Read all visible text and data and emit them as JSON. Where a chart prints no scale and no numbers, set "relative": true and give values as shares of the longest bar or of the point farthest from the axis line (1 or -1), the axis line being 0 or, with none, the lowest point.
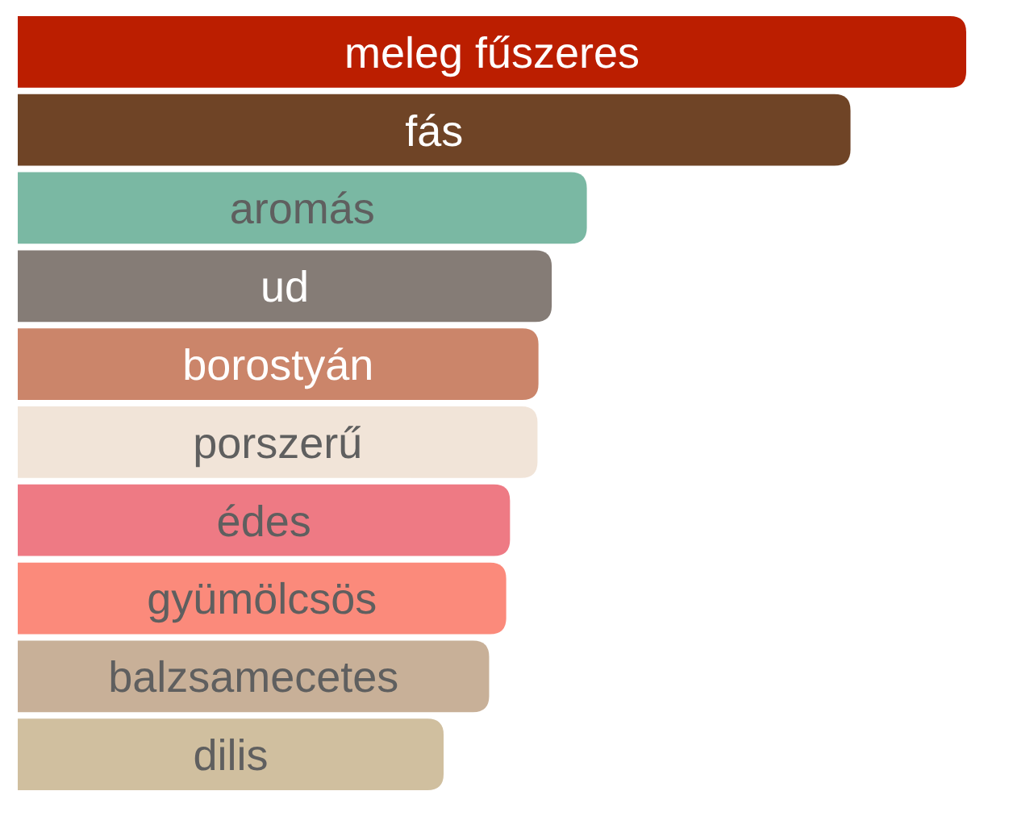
{
  "chart_data": {
    "type": "bar",
    "orientation": "horizontal",
    "relative": true,
    "categories": [
      "meleg fűszeres",
      "fás",
      "aromás",
      "ud",
      "borostyán",
      "porszerű",
      "édes",
      "gyümölcsös",
      "balzsamecetes",
      "dilis"
    ],
    "values": [
      1,
      0.878,
      0.6,
      0.563,
      0.549,
      0.548,
      0.519,
      0.515,
      0.497,
      0.449
    ],
    "colors": [
      "#bb1e00",
      "#6f4426",
      "#7ab8a3",
      "#857c76",
      "#cb856a",
      "#f1e4d8",
      "#ee7a84",
      "#fb8a7b",
      "#c8b098",
      "#d0bf9f"
    ]
  }
}
